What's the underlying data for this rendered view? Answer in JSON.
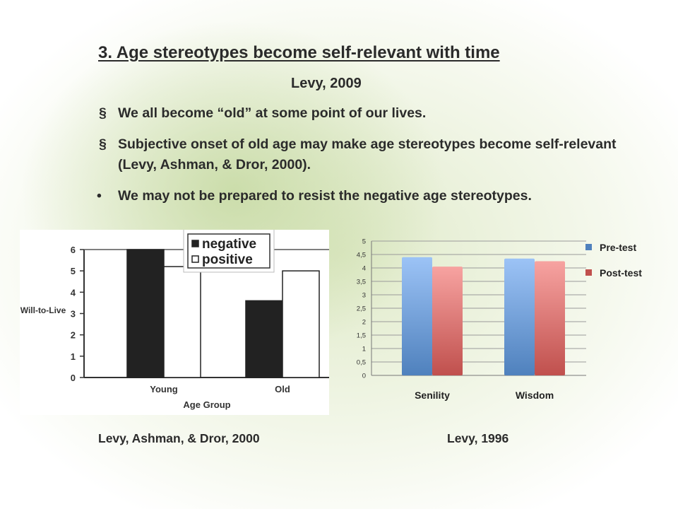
{
  "slide": {
    "title": "3. Age stereotypes become self-relevant with time",
    "subtitle": "Levy, 2009",
    "bullets": [
      {
        "marker": "§",
        "text": "We all become “old” at some point of our lives."
      },
      {
        "marker": "§",
        "text": "Subjective onset of old age may make age stereotypes become self-relevant (Levy, Ashman, & Dror, 2000)."
      },
      {
        "marker": "•",
        "text": "We may not be prepared to resist the negative age stereotypes."
      }
    ],
    "sources": [
      "Levy, Ashman, & Dror, 2000",
      "Levy, 1996"
    ]
  },
  "chart_data": [
    {
      "type": "bar",
      "ylabel": "Will-to-Live",
      "xlabel": "Age Group",
      "categories": [
        "Young",
        "Old"
      ],
      "ylim": [
        0,
        6
      ],
      "yticks": [
        "0",
        "1",
        "2",
        "3",
        "4",
        "5",
        "6"
      ],
      "legend_position": "top-right",
      "series": [
        {
          "name": "negative",
          "values": [
            6.0,
            3.6
          ],
          "color": "#222222"
        },
        {
          "name": "positive",
          "values": [
            5.2,
            5.0
          ],
          "color": "#ffffff"
        }
      ]
    },
    {
      "type": "bar",
      "categories": [
        "Senility",
        "Wisdom"
      ],
      "ylim": [
        0,
        5
      ],
      "yticks": [
        "0",
        "0,5",
        "1",
        "1,5",
        "2",
        "2,5",
        "3",
        "3,5",
        "4",
        "4,5",
        "5"
      ],
      "grid": true,
      "legend_position": "right",
      "series": [
        {
          "name": "Pre-test",
          "values": [
            4.4,
            4.35
          ],
          "color": "#4f81bd",
          "color_light": "#9cc3f6"
        },
        {
          "name": "Post-test",
          "values": [
            4.05,
            4.25
          ],
          "color": "#c0504d",
          "color_light": "#f7a3a1"
        }
      ]
    }
  ]
}
